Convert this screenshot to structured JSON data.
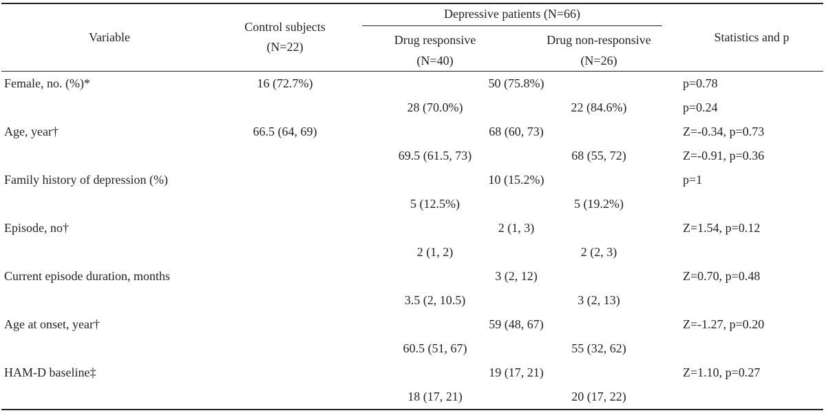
{
  "table": {
    "headers": {
      "variable": "Variable",
      "control": "Control subjects",
      "control_n": "(N=22)",
      "patients": "Depressive patients (N=66)",
      "responsive": "Drug responsive",
      "responsive_n": "(N=40)",
      "nonresponsive": "Drug non-responsive",
      "nonresponsive_n": "(N=26)",
      "stats": "Statistics and p"
    },
    "rows": [
      {
        "variable": "Female, no. (%)*",
        "control": "16 (72.7%)",
        "patients": "50 (75.8%)",
        "stats": "p=0.78",
        "responsive": "28 (70.0%)",
        "nonresponsive": "22 (84.6%)",
        "stats2": "p=0.24"
      },
      {
        "variable": "Age, year†",
        "control": "66.5 (64, 69)",
        "patients": "68 (60, 73)",
        "stats": "Z=-0.34, p=0.73",
        "responsive": "69.5 (61.5, 73)",
        "nonresponsive": "68 (55, 72)",
        "stats2": "Z=-0.91, p=0.36"
      },
      {
        "variable": "Family history of depression (%)",
        "control": "",
        "patients": "10 (15.2%)",
        "stats": "p=1",
        "responsive": "5 (12.5%)",
        "nonresponsive": "5 (19.2%)",
        "stats2": ""
      },
      {
        "variable": "Episode, no†",
        "control": "",
        "patients": "2 (1, 3)",
        "stats": "Z=1.54, p=0.12",
        "responsive": "2 (1, 2)",
        "nonresponsive": "2 (2, 3)",
        "stats2": ""
      },
      {
        "variable": "Current episode duration, months",
        "control": "",
        "patients": "3 (2, 12)",
        "stats": "Z=0.70, p=0.48",
        "responsive": "3.5 (2, 10.5)",
        "nonresponsive": "3 (2, 13)",
        "stats2": ""
      },
      {
        "variable": "Age at onset, year†",
        "control": "",
        "patients": "59 (48, 67)",
        "stats": "Z=-1.27, p=0.20",
        "responsive": "60.5 (51, 67)",
        "nonresponsive": "55 (32, 62)",
        "stats2": ""
      },
      {
        "variable": "HAM-D baseline‡",
        "control": "",
        "patients": "19 (17, 21)",
        "stats": "Z=1.10, p=0.27",
        "responsive": "18 (17, 21)",
        "nonresponsive": "20 (17, 22)",
        "stats2": ""
      }
    ]
  }
}
